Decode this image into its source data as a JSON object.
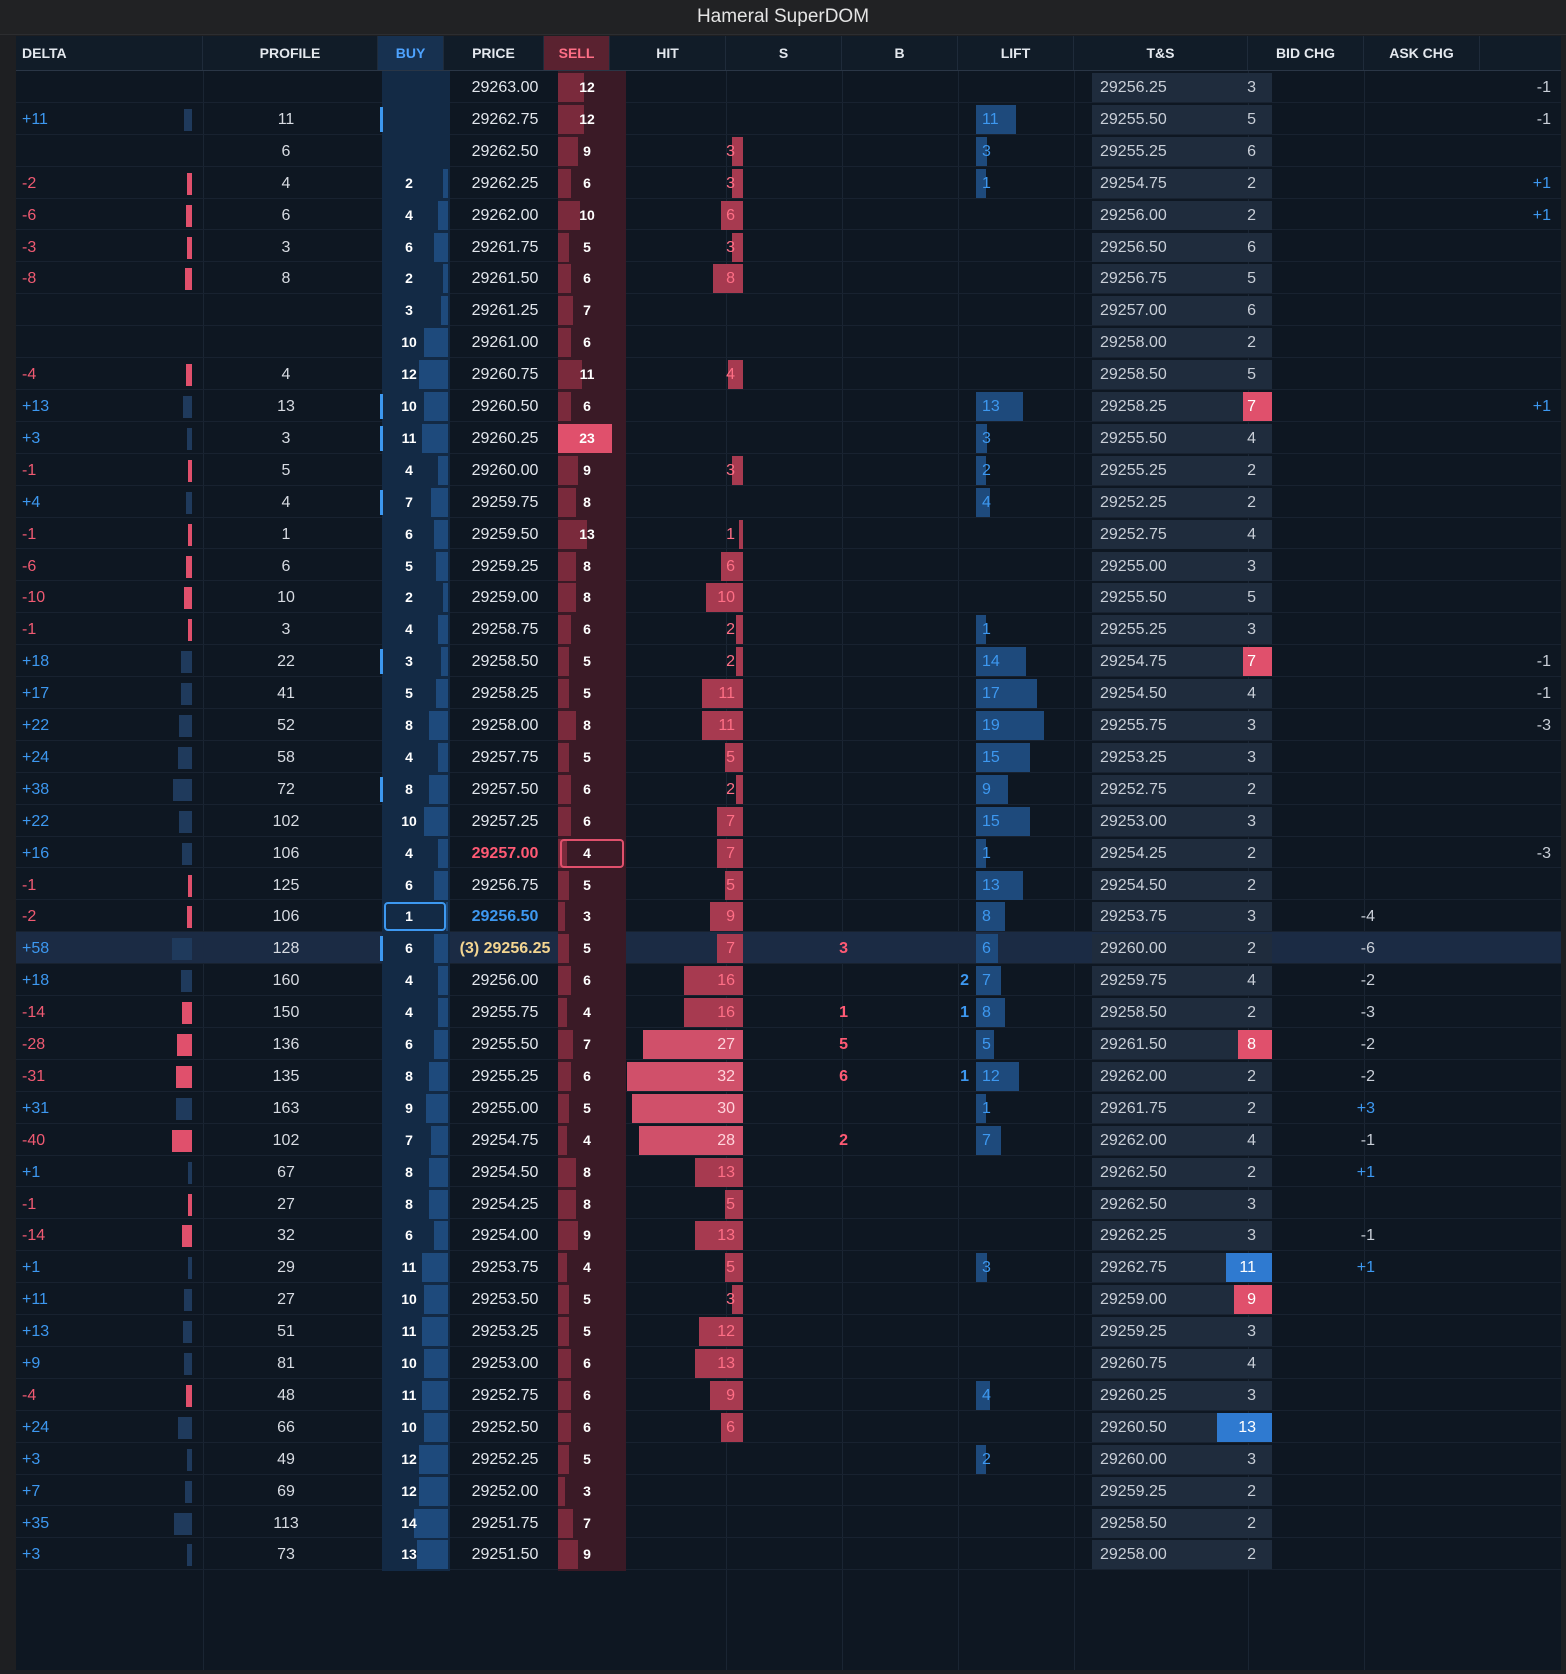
{
  "window": {
    "title": "Hameral SuperDOM"
  },
  "columns": [
    "DELTA",
    "PROFILE",
    "BUY",
    "PRICE",
    "SELL",
    "HIT",
    "S",
    "B",
    "LIFT",
    "T&S",
    "BID CHG",
    "ASK CHG"
  ],
  "colors": {
    "buy": "#3d98f0",
    "sell": "#f05a72",
    "background": "#0e1722",
    "last_trade": "#f3d591"
  },
  "rows": [
    {
      "delta": "",
      "profile": "",
      "buy": "",
      "price": "29263.00",
      "sell": "12",
      "hit": "",
      "s": "",
      "b": "",
      "lift": "",
      "ts_price": "29256.25",
      "ts_qty": "3",
      "bid_chg": "",
      "ask_chg": "-1"
    },
    {
      "delta": "+11",
      "profile": "11",
      "buy": "",
      "price": "29262.75",
      "sell": "12",
      "hit": "",
      "s": "",
      "b": "",
      "lift": "11",
      "ts_price": "29255.50",
      "ts_qty": "5",
      "bid_chg": "",
      "ask_chg": "-1"
    },
    {
      "delta": "",
      "profile": "6",
      "buy": "",
      "price": "29262.50",
      "sell": "9",
      "hit": "3",
      "s": "",
      "b": "",
      "lift": "3",
      "ts_price": "29255.25",
      "ts_qty": "6",
      "bid_chg": "",
      "ask_chg": ""
    },
    {
      "delta": "-2",
      "profile": "4",
      "buy": "2",
      "price": "29262.25",
      "sell": "6",
      "hit": "3",
      "s": "",
      "b": "",
      "lift": "1",
      "ts_price": "29254.75",
      "ts_qty": "2",
      "bid_chg": "",
      "ask_chg": "+1"
    },
    {
      "delta": "-6",
      "profile": "6",
      "buy": "4",
      "price": "29262.00",
      "sell": "10",
      "hit": "6",
      "s": "",
      "b": "",
      "lift": "",
      "ts_price": "29256.00",
      "ts_qty": "2",
      "bid_chg": "",
      "ask_chg": "+1"
    },
    {
      "delta": "-3",
      "profile": "3",
      "buy": "6",
      "price": "29261.75",
      "sell": "5",
      "hit": "3",
      "s": "",
      "b": "",
      "lift": "",
      "ts_price": "29256.50",
      "ts_qty": "6",
      "bid_chg": "",
      "ask_chg": ""
    },
    {
      "delta": "-8",
      "profile": "8",
      "buy": "2",
      "price": "29261.50",
      "sell": "6",
      "hit": "8",
      "s": "",
      "b": "",
      "lift": "",
      "ts_price": "29256.75",
      "ts_qty": "5",
      "bid_chg": "",
      "ask_chg": ""
    },
    {
      "delta": "",
      "profile": "",
      "buy": "3",
      "price": "29261.25",
      "sell": "7",
      "hit": "",
      "s": "",
      "b": "",
      "lift": "",
      "ts_price": "29257.00",
      "ts_qty": "6",
      "bid_chg": "",
      "ask_chg": ""
    },
    {
      "delta": "",
      "profile": "",
      "buy": "10",
      "price": "29261.00",
      "sell": "6",
      "hit": "",
      "s": "",
      "b": "",
      "lift": "",
      "ts_price": "29258.00",
      "ts_qty": "2",
      "bid_chg": "",
      "ask_chg": ""
    },
    {
      "delta": "-4",
      "profile": "4",
      "buy": "12",
      "price": "29260.75",
      "sell": "11",
      "hit": "4",
      "s": "",
      "b": "",
      "lift": "",
      "ts_price": "29258.50",
      "ts_qty": "5",
      "bid_chg": "",
      "ask_chg": ""
    },
    {
      "delta": "+13",
      "profile": "13",
      "buy": "10",
      "price": "29260.50",
      "sell": "6",
      "hit": "",
      "s": "",
      "b": "",
      "lift": "13",
      "ts_price": "29258.25",
      "ts_qty": "7",
      "bid_chg": "",
      "ask_chg": "+1"
    },
    {
      "delta": "+3",
      "profile": "3",
      "buy": "11",
      "price": "29260.25",
      "sell": "23",
      "hit": "",
      "s": "",
      "b": "",
      "lift": "3",
      "ts_price": "29255.50",
      "ts_qty": "4",
      "bid_chg": "",
      "ask_chg": ""
    },
    {
      "delta": "-1",
      "profile": "5",
      "buy": "4",
      "price": "29260.00",
      "sell": "9",
      "hit": "3",
      "s": "",
      "b": "",
      "lift": "2",
      "ts_price": "29255.25",
      "ts_qty": "2",
      "bid_chg": "",
      "ask_chg": ""
    },
    {
      "delta": "+4",
      "profile": "4",
      "buy": "7",
      "price": "29259.75",
      "sell": "8",
      "hit": "",
      "s": "",
      "b": "",
      "lift": "4",
      "ts_price": "29252.25",
      "ts_qty": "2",
      "bid_chg": "",
      "ask_chg": ""
    },
    {
      "delta": "-1",
      "profile": "1",
      "buy": "6",
      "price": "29259.50",
      "sell": "13",
      "hit": "1",
      "s": "",
      "b": "",
      "lift": "",
      "ts_price": "29252.75",
      "ts_qty": "4",
      "bid_chg": "",
      "ask_chg": ""
    },
    {
      "delta": "-6",
      "profile": "6",
      "buy": "5",
      "price": "29259.25",
      "sell": "8",
      "hit": "6",
      "s": "",
      "b": "",
      "lift": "",
      "ts_price": "29255.00",
      "ts_qty": "3",
      "bid_chg": "",
      "ask_chg": ""
    },
    {
      "delta": "-10",
      "profile": "10",
      "buy": "2",
      "price": "29259.00",
      "sell": "8",
      "hit": "10",
      "s": "",
      "b": "",
      "lift": "",
      "ts_price": "29255.50",
      "ts_qty": "5",
      "bid_chg": "",
      "ask_chg": ""
    },
    {
      "delta": "-1",
      "profile": "3",
      "buy": "4",
      "price": "29258.75",
      "sell": "6",
      "hit": "2",
      "s": "",
      "b": "",
      "lift": "1",
      "ts_price": "29255.25",
      "ts_qty": "3",
      "bid_chg": "",
      "ask_chg": ""
    },
    {
      "delta": "+18",
      "profile": "22",
      "buy": "3",
      "price": "29258.50",
      "sell": "5",
      "hit": "2",
      "s": "",
      "b": "",
      "lift": "14",
      "ts_price": "29254.75",
      "ts_qty": "7",
      "bid_chg": "",
      "ask_chg": "-1"
    },
    {
      "delta": "+17",
      "profile": "41",
      "buy": "5",
      "price": "29258.25",
      "sell": "5",
      "hit": "11",
      "s": "",
      "b": "",
      "lift": "17",
      "ts_price": "29254.50",
      "ts_qty": "4",
      "bid_chg": "",
      "ask_chg": "-1"
    },
    {
      "delta": "+22",
      "profile": "52",
      "buy": "8",
      "price": "29258.00",
      "sell": "8",
      "hit": "11",
      "s": "",
      "b": "",
      "lift": "19",
      "ts_price": "29255.75",
      "ts_qty": "3",
      "bid_chg": "",
      "ask_chg": "-3"
    },
    {
      "delta": "+24",
      "profile": "58",
      "buy": "4",
      "price": "29257.75",
      "sell": "5",
      "hit": "5",
      "s": "",
      "b": "",
      "lift": "15",
      "ts_price": "29253.25",
      "ts_qty": "3",
      "bid_chg": "",
      "ask_chg": ""
    },
    {
      "delta": "+38",
      "profile": "72",
      "buy": "8",
      "price": "29257.50",
      "sell": "6",
      "hit": "2",
      "s": "",
      "b": "",
      "lift": "9",
      "ts_price": "29252.75",
      "ts_qty": "2",
      "bid_chg": "",
      "ask_chg": ""
    },
    {
      "delta": "+22",
      "profile": "102",
      "buy": "10",
      "price": "29257.25",
      "sell": "6",
      "hit": "7",
      "s": "",
      "b": "",
      "lift": "15",
      "ts_price": "29253.00",
      "ts_qty": "3",
      "bid_chg": "",
      "ask_chg": ""
    },
    {
      "delta": "+16",
      "profile": "106",
      "buy": "4",
      "price": "29257.00",
      "sell": "4",
      "hit": "7",
      "s": "",
      "b": "",
      "lift": "1",
      "ts_price": "29254.25",
      "ts_qty": "2",
      "bid_chg": "",
      "ask_chg": "-3"
    },
    {
      "delta": "-1",
      "profile": "125",
      "buy": "6",
      "price": "29256.75",
      "sell": "5",
      "hit": "5",
      "s": "",
      "b": "",
      "lift": "13",
      "ts_price": "29254.50",
      "ts_qty": "2",
      "bid_chg": "",
      "ask_chg": ""
    },
    {
      "delta": "-2",
      "profile": "106",
      "buy": "1",
      "price": "29256.50",
      "sell": "3",
      "hit": "9",
      "s": "",
      "b": "",
      "lift": "8",
      "ts_price": "29253.75",
      "ts_qty": "3",
      "bid_chg": "-4",
      "ask_chg": ""
    },
    {
      "delta": "+58",
      "profile": "128",
      "buy": "6",
      "price": "(3) 29256.25",
      "sell": "5",
      "hit": "7",
      "s": "3",
      "b": "",
      "lift": "6",
      "ts_price": "29260.00",
      "ts_qty": "2",
      "bid_chg": "-6",
      "ask_chg": ""
    },
    {
      "delta": "+18",
      "profile": "160",
      "buy": "4",
      "price": "29256.00",
      "sell": "6",
      "hit": "16",
      "s": "",
      "b": "2",
      "lift": "7",
      "ts_price": "29259.75",
      "ts_qty": "4",
      "bid_chg": "-2",
      "ask_chg": ""
    },
    {
      "delta": "-14",
      "profile": "150",
      "buy": "4",
      "price": "29255.75",
      "sell": "4",
      "hit": "16",
      "s": "1",
      "b": "1",
      "lift": "8",
      "ts_price": "29258.50",
      "ts_qty": "2",
      "bid_chg": "-3",
      "ask_chg": ""
    },
    {
      "delta": "-28",
      "profile": "136",
      "buy": "6",
      "price": "29255.50",
      "sell": "7",
      "hit": "27",
      "s": "5",
      "b": "",
      "lift": "5",
      "ts_price": "29261.50",
      "ts_qty": "8",
      "bid_chg": "-2",
      "ask_chg": ""
    },
    {
      "delta": "-31",
      "profile": "135",
      "buy": "8",
      "price": "29255.25",
      "sell": "6",
      "hit": "32",
      "s": "6",
      "b": "1",
      "lift": "12",
      "ts_price": "29262.00",
      "ts_qty": "2",
      "bid_chg": "-2",
      "ask_chg": ""
    },
    {
      "delta": "+31",
      "profile": "163",
      "buy": "9",
      "price": "29255.00",
      "sell": "5",
      "hit": "30",
      "s": "",
      "b": "",
      "lift": "1",
      "ts_price": "29261.75",
      "ts_qty": "2",
      "bid_chg": "+3",
      "ask_chg": ""
    },
    {
      "delta": "-40",
      "profile": "102",
      "buy": "7",
      "price": "29254.75",
      "sell": "4",
      "hit": "28",
      "s": "2",
      "b": "",
      "lift": "7",
      "ts_price": "29262.00",
      "ts_qty": "4",
      "bid_chg": "-1",
      "ask_chg": ""
    },
    {
      "delta": "+1",
      "profile": "67",
      "buy": "8",
      "price": "29254.50",
      "sell": "8",
      "hit": "13",
      "s": "",
      "b": "",
      "lift": "",
      "ts_price": "29262.50",
      "ts_qty": "2",
      "bid_chg": "+1",
      "ask_chg": ""
    },
    {
      "delta": "-1",
      "profile": "27",
      "buy": "8",
      "price": "29254.25",
      "sell": "8",
      "hit": "5",
      "s": "",
      "b": "",
      "lift": "",
      "ts_price": "29262.50",
      "ts_qty": "3",
      "bid_chg": "",
      "ask_chg": ""
    },
    {
      "delta": "-14",
      "profile": "32",
      "buy": "6",
      "price": "29254.00",
      "sell": "9",
      "hit": "13",
      "s": "",
      "b": "",
      "lift": "",
      "ts_price": "29262.25",
      "ts_qty": "3",
      "bid_chg": "-1",
      "ask_chg": ""
    },
    {
      "delta": "+1",
      "profile": "29",
      "buy": "11",
      "price": "29253.75",
      "sell": "4",
      "hit": "5",
      "s": "",
      "b": "",
      "lift": "3",
      "ts_price": "29262.75",
      "ts_qty": "11",
      "bid_chg": "+1",
      "ask_chg": ""
    },
    {
      "delta": "+11",
      "profile": "27",
      "buy": "10",
      "price": "29253.50",
      "sell": "5",
      "hit": "3",
      "s": "",
      "b": "",
      "lift": "",
      "ts_price": "29259.00",
      "ts_qty": "9",
      "bid_chg": "",
      "ask_chg": ""
    },
    {
      "delta": "+13",
      "profile": "51",
      "buy": "11",
      "price": "29253.25",
      "sell": "5",
      "hit": "12",
      "s": "",
      "b": "",
      "lift": "",
      "ts_price": "29259.25",
      "ts_qty": "3",
      "bid_chg": "",
      "ask_chg": ""
    },
    {
      "delta": "+9",
      "profile": "81",
      "buy": "10",
      "price": "29253.00",
      "sell": "6",
      "hit": "13",
      "s": "",
      "b": "",
      "lift": "",
      "ts_price": "29260.75",
      "ts_qty": "4",
      "bid_chg": "",
      "ask_chg": ""
    },
    {
      "delta": "-4",
      "profile": "48",
      "buy": "11",
      "price": "29252.75",
      "sell": "6",
      "hit": "9",
      "s": "",
      "b": "",
      "lift": "4",
      "ts_price": "29260.25",
      "ts_qty": "3",
      "bid_chg": "",
      "ask_chg": ""
    },
    {
      "delta": "+24",
      "profile": "66",
      "buy": "10",
      "price": "29252.50",
      "sell": "6",
      "hit": "6",
      "s": "",
      "b": "",
      "lift": "",
      "ts_price": "29260.50",
      "ts_qty": "13",
      "bid_chg": "",
      "ask_chg": ""
    },
    {
      "delta": "+3",
      "profile": "49",
      "buy": "12",
      "price": "29252.25",
      "sell": "5",
      "hit": "",
      "s": "",
      "b": "",
      "lift": "2",
      "ts_price": "29260.00",
      "ts_qty": "3",
      "bid_chg": "",
      "ask_chg": ""
    },
    {
      "delta": "+7",
      "profile": "69",
      "buy": "12",
      "price": "29252.00",
      "sell": "3",
      "hit": "",
      "s": "",
      "b": "",
      "lift": "",
      "ts_price": "29259.25",
      "ts_qty": "2",
      "bid_chg": "",
      "ask_chg": ""
    },
    {
      "delta": "+35",
      "profile": "113",
      "buy": "14",
      "price": "29251.75",
      "sell": "7",
      "hit": "",
      "s": "",
      "b": "",
      "lift": "",
      "ts_price": "29258.50",
      "ts_qty": "2",
      "bid_chg": "",
      "ask_chg": ""
    },
    {
      "delta": "+3",
      "profile": "73",
      "buy": "13",
      "price": "29251.50",
      "sell": "9",
      "hit": "",
      "s": "",
      "b": "",
      "lift": "",
      "ts_price": "29258.00",
      "ts_qty": "2",
      "bid_chg": "",
      "ask_chg": ""
    }
  ]
}
